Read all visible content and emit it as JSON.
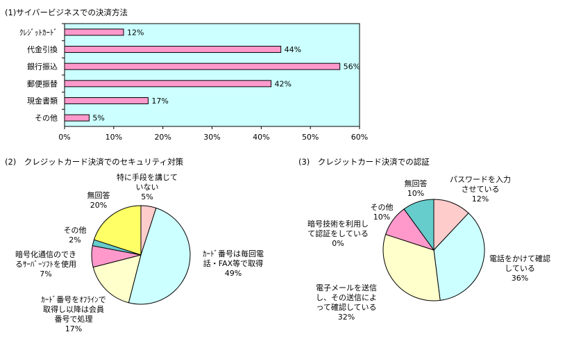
{
  "chart_data": [
    {
      "type": "bar",
      "title": "(1)サイバービジネスでの決済方法",
      "categories": [
        "ｸﾚｼﾞｯﾄｶｰﾄﾞ",
        "代金引換",
        "銀行振込",
        "郵便振替",
        "現金書類",
        "その他"
      ],
      "values": [
        12,
        44,
        56,
        42,
        17,
        5
      ],
      "value_labels": [
        "12%",
        "44%",
        "56%",
        "42%",
        "17%",
        "5%"
      ],
      "xlim": [
        0,
        60
      ],
      "xticks": [
        "0%",
        "10%",
        "20%",
        "30%",
        "40%",
        "50%",
        "60%"
      ],
      "orientation": "horizontal",
      "grid": false,
      "colors": {
        "bar": "#ff99cc",
        "plot_bg": "#ccffff",
        "border": "#000000"
      }
    },
    {
      "type": "pie",
      "title": "(2)　クレジットカード決済でのセキュリティ対策",
      "slices": [
        {
          "label": [
            "特に手段を講じて",
            "いない"
          ],
          "value": 5,
          "pct": "5%",
          "color": "#ffcccc"
        },
        {
          "label": [
            "ｶｰﾄﾞ番号は毎回電",
            "話・FAX等で取得"
          ],
          "value": 49,
          "pct": "49%",
          "color": "#ccffff"
        },
        {
          "label": [
            "ｶｰﾄﾞ番号をｵﾌﾗｲﾝで",
            "取得し以降は会員",
            "番号で処理"
          ],
          "value": 17,
          "pct": "17%",
          "color": "#ffffcc"
        },
        {
          "label": [
            "暗号化通信のでき",
            "るｻｰﾊﾞｰｿﾌﾄを使用"
          ],
          "value": 7,
          "pct": "7%",
          "color": "#ff99cc"
        },
        {
          "label": [
            "その他"
          ],
          "value": 2,
          "pct": "2%",
          "color": "#66cccc"
        },
        {
          "label": [
            "無回答"
          ],
          "value": 20,
          "pct": "20%",
          "color": "#ffff66"
        }
      ]
    },
    {
      "type": "pie",
      "title": "(3)　クレジットカード決済での認証",
      "slices": [
        {
          "label": [
            "パスワードを入力",
            "させている"
          ],
          "value": 12,
          "pct": "12%",
          "color": "#ffcccc"
        },
        {
          "label": [
            "電話をかけて確認",
            "している"
          ],
          "value": 36,
          "pct": "36%",
          "color": "#ccffff"
        },
        {
          "label": [
            "電子メールを送信",
            "し、その送信によ",
            "って確認している"
          ],
          "value": 32,
          "pct": "32%",
          "color": "#ffffcc"
        },
        {
          "label": [
            "暗号技術を利用し",
            "て認証をしている"
          ],
          "value": 0,
          "pct": "0%",
          "color": "#ff99cc"
        },
        {
          "label": [
            "その他"
          ],
          "value": 10,
          "pct": "10%",
          "color": "#ff99cc"
        },
        {
          "label": [
            "無回答"
          ],
          "value": 10,
          "pct": "10%",
          "color": "#66cccc"
        }
      ]
    }
  ]
}
